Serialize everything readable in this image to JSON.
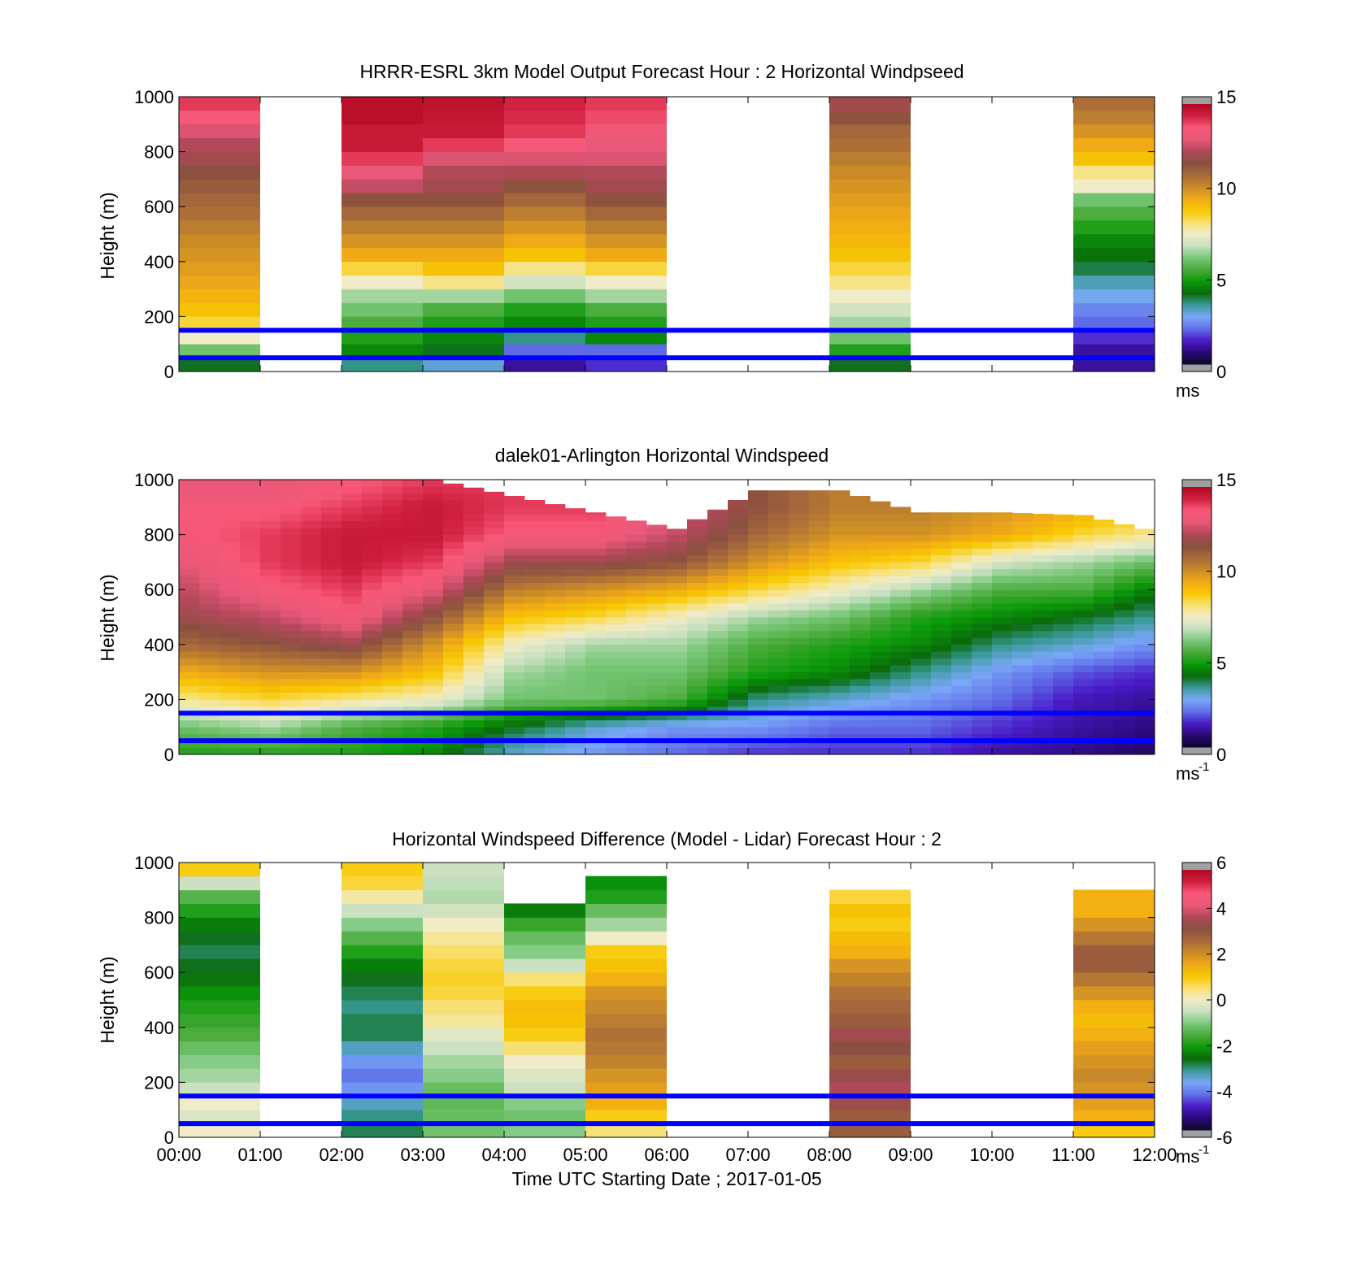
{
  "colors": {
    "speed_stops": [
      "#0a0a2a",
      "#2a0878",
      "#4a1cc8",
      "#6070e8",
      "#7aa8f8",
      "#3a9a9a",
      "#0a6a0a",
      "#0a9a0a",
      "#4aaa3a",
      "#7ac87a",
      "#c8e0c0",
      "#f0ecc8",
      "#f8e070",
      "#f8c800",
      "#f0a818",
      "#c88a28",
      "#a86a3a",
      "#8a5040",
      "#b04858",
      "#e85878",
      "#f85878",
      "#d02040",
      "#b00820"
    ],
    "diff_stops": [
      "#0a0a2a",
      "#2a0878",
      "#4a1cc8",
      "#6070e8",
      "#7aa8f8",
      "#3a9a9a",
      "#0a6a0a",
      "#0a9a0a",
      "#4aaa3a",
      "#7ac87a",
      "#c8e0c0",
      "#f0ecc8",
      "#f8e070",
      "#f8c800",
      "#f0a818",
      "#c88a28",
      "#a86a3a",
      "#8a5040",
      "#b04858",
      "#e85878",
      "#f85878",
      "#d02040",
      "#b00820"
    ],
    "out_of_range": "#a0a0a0",
    "reference_lines": "#0000ff"
  },
  "figure_xlabel": "Time UTC  Starting Date ; 2017-01-05",
  "chart_data": [
    {
      "type": "heatmap",
      "title": "HRRR-ESRL 3km Model Output   Forecast Hour : 2 Horizontal Windpseed",
      "ylabel": "Height (m)",
      "xlim": [
        0,
        12
      ],
      "ylim": [
        0,
        1000
      ],
      "y_ticks": [
        "0",
        "200",
        "400",
        "600",
        "800",
        "1000"
      ],
      "clim": [
        0,
        15
      ],
      "colorbar_ticks": [
        "0",
        "5",
        "10",
        "15"
      ],
      "colorbar_unit": "ms",
      "colorbar_unit_sup": "",
      "reference_heights_m": [
        50,
        150
      ],
      "heights_m": [
        25,
        75,
        125,
        175,
        225,
        275,
        325,
        375,
        425,
        475,
        525,
        575,
        625,
        675,
        725,
        775,
        825,
        875,
        925,
        975
      ],
      "columns": [
        {
          "x_start": 0,
          "x_end": 1,
          "values": [
            4,
            6,
            7.5,
            8.5,
            9,
            9.3,
            9.6,
            9.8,
            10,
            10.2,
            10.5,
            10.8,
            11,
            11.3,
            11.6,
            12,
            12.3,
            12.8,
            13.5,
            14
          ]
        },
        {
          "x_start": 2,
          "x_end": 3,
          "values": [
            3.5,
            4.5,
            5,
            5.5,
            6,
            6.5,
            7.5,
            8.5,
            9.5,
            10,
            10.5,
            11,
            11.5,
            12.5,
            13,
            14,
            14.5,
            14.5,
            14.8,
            14.8
          ]
        },
        {
          "x_start": 3,
          "x_end": 4,
          "values": [
            3,
            4,
            4.5,
            5,
            5.5,
            6.5,
            8,
            9,
            9.5,
            10,
            10.5,
            11,
            11.5,
            12,
            12.3,
            12.8,
            14,
            14.5,
            14.6,
            14.7
          ]
        },
        {
          "x_start": 4,
          "x_end": 5,
          "values": [
            1,
            2,
            3.5,
            4.5,
            5,
            6,
            7,
            8,
            9,
            9.5,
            10,
            10.5,
            11,
            11.5,
            12.2,
            12.8,
            13.5,
            14,
            14.2,
            14.3
          ]
        },
        {
          "x_start": 5,
          "x_end": 6,
          "values": [
            1.5,
            2,
            4.5,
            5,
            5.5,
            6.5,
            7.5,
            8.5,
            9.5,
            10,
            10.5,
            11,
            11.5,
            12,
            12.3,
            12.8,
            13,
            13.3,
            13.8,
            14
          ]
        },
        {
          "x_start": 8,
          "x_end": 9,
          "values": [
            4,
            5,
            6,
            6.5,
            7,
            7.5,
            8,
            8.5,
            9,
            9.2,
            9.4,
            9.6,
            9.8,
            10,
            10.2,
            10.5,
            10.8,
            11,
            11.5,
            12
          ]
        },
        {
          "x_start": 11,
          "x_end": 12,
          "values": [
            1,
            1,
            1.5,
            2,
            2.3,
            2.8,
            3.2,
            3.8,
            4.2,
            4.5,
            5,
            5.5,
            6,
            7.5,
            8,
            9,
            9.5,
            10,
            10.5,
            10.8
          ]
        }
      ]
    },
    {
      "type": "heatmap",
      "title": "dalek01-Arlington  Horizontal Windspeed",
      "ylabel": "Height (m)",
      "xlim": [
        0,
        12
      ],
      "ylim": [
        0,
        1000
      ],
      "y_ticks": [
        "0",
        "200",
        "400",
        "600",
        "800",
        "1000"
      ],
      "clim": [
        0,
        15
      ],
      "colorbar_ticks": [
        "0",
        "5",
        "10",
        "15"
      ],
      "colorbar_unit": "ms",
      "colorbar_unit_sup": "-1",
      "reference_heights_m": [
        50,
        150
      ],
      "profile_interval_h": 0.25,
      "profiles": [
        {
          "t": 0.0,
          "max_height_m": 1000,
          "levels_m": [
            0,
            100,
            200,
            300,
            400,
            500,
            600,
            700,
            800,
            900,
            1000
          ],
          "speeds": [
            5,
            6,
            8,
            9.5,
            11,
            12,
            12.5,
            13,
            13.5,
            13.5,
            13
          ]
        },
        {
          "t": 1.0,
          "max_height_m": 1000,
          "levels_m": [
            0,
            100,
            200,
            300,
            400,
            500,
            600,
            700,
            800,
            900,
            1000
          ],
          "speeds": [
            5,
            6.5,
            8.5,
            10,
            11.5,
            12.5,
            13.5,
            14,
            14,
            13.5,
            13
          ]
        },
        {
          "t": 2.0,
          "max_height_m": 1000,
          "levels_m": [
            0,
            100,
            200,
            300,
            400,
            500,
            600,
            700,
            800,
            900,
            1000
          ],
          "speeds": [
            5,
            5.5,
            8,
            10,
            12,
            13.5,
            14,
            14.5,
            14.5,
            14,
            13.5
          ]
        },
        {
          "t": 3.0,
          "max_height_m": 1000,
          "levels_m": [
            0,
            100,
            200,
            300,
            400,
            500,
            600,
            700,
            800,
            900,
            1000
          ],
          "speeds": [
            4.5,
            5,
            7.5,
            9,
            10,
            11.5,
            13,
            14,
            14.5,
            14.5,
            14
          ]
        },
        {
          "t": 4.0,
          "max_height_m": 940,
          "levels_m": [
            0,
            100,
            200,
            300,
            400,
            500,
            600,
            700,
            800,
            900,
            1000
          ],
          "speeds": [
            3,
            4,
            6,
            6.5,
            7.5,
            9,
            10.5,
            12,
            13.5,
            14,
            14
          ]
        },
        {
          "t": 5.0,
          "max_height_m": 880,
          "levels_m": [
            0,
            100,
            200,
            300,
            400,
            500,
            600,
            700,
            800,
            900,
            1000
          ],
          "speeds": [
            2.5,
            3,
            6,
            6,
            6.5,
            8.5,
            10,
            12,
            13.5,
            14,
            14
          ]
        },
        {
          "t": 6.0,
          "max_height_m": 820,
          "levels_m": [
            0,
            100,
            200,
            300,
            400,
            500,
            600,
            700,
            800,
            900,
            1000
          ],
          "speeds": [
            2,
            2.5,
            5.5,
            6,
            6.5,
            7.5,
            9.5,
            11.5,
            12.5,
            13,
            13
          ]
        },
        {
          "t": 7.0,
          "max_height_m": 960,
          "levels_m": [
            0,
            100,
            200,
            300,
            400,
            500,
            600,
            700,
            800,
            900,
            1000
          ],
          "speeds": [
            1.5,
            2.5,
            3.5,
            5,
            5.5,
            6.5,
            8.5,
            10,
            11,
            11.5,
            11.5
          ]
        },
        {
          "t": 8.0,
          "max_height_m": 960,
          "levels_m": [
            0,
            100,
            200,
            300,
            400,
            500,
            600,
            700,
            800,
            900,
            1000
          ],
          "speeds": [
            1.5,
            2,
            3,
            4.5,
            5,
            6,
            7.5,
            9,
            10,
            10.5,
            10.5
          ]
        },
        {
          "t": 9.0,
          "max_height_m": 880,
          "levels_m": [
            0,
            100,
            200,
            300,
            400,
            500,
            600,
            700,
            800,
            900,
            1000
          ],
          "speeds": [
            1.5,
            2,
            2.5,
            3.5,
            4.5,
            5,
            6.5,
            8.5,
            10,
            10.5,
            10.5
          ]
        },
        {
          "t": 10.0,
          "max_height_m": 880,
          "levels_m": [
            0,
            100,
            200,
            300,
            400,
            500,
            600,
            700,
            800,
            900,
            1000
          ],
          "speeds": [
            1,
            1.5,
            2,
            2.5,
            3.5,
            4.5,
            5.5,
            7,
            9.5,
            10,
            10
          ]
        },
        {
          "t": 11.0,
          "max_height_m": 870,
          "levels_m": [
            0,
            100,
            200,
            300,
            400,
            500,
            600,
            700,
            800,
            900,
            1000
          ],
          "speeds": [
            0.8,
            1,
            1.2,
            1.8,
            3,
            4,
            5.5,
            6.5,
            8.5,
            9.5,
            9.5
          ]
        },
        {
          "t": 11.75,
          "max_height_m": 820,
          "levels_m": [
            0,
            100,
            200,
            300,
            400,
            500,
            600,
            700,
            800,
            900,
            1000
          ],
          "speeds": [
            0.5,
            0.8,
            1,
            1.5,
            2.5,
            3.5,
            4.5,
            6,
            8,
            9,
            9
          ]
        }
      ]
    },
    {
      "type": "heatmap",
      "title": "Horizontal Windspeed Difference (Model - Lidar) Forecast Hour : 2",
      "ylabel": "Height (m)",
      "xlim": [
        0,
        12
      ],
      "ylim": [
        0,
        1000
      ],
      "x_ticks": [
        "00:00",
        "01:00",
        "02:00",
        "03:00",
        "04:00",
        "05:00",
        "06:00",
        "07:00",
        "08:00",
        "09:00",
        "10:00",
        "11:00",
        "12:00"
      ],
      "y_ticks": [
        "0",
        "200",
        "400",
        "600",
        "800",
        "1000"
      ],
      "clim": [
        -6,
        6
      ],
      "colorbar_ticks": [
        "-6",
        "-4",
        "-2",
        "0",
        "2",
        "4",
        "6"
      ],
      "colorbar_unit": "ms",
      "colorbar_unit_sup": "-1",
      "reference_heights_m": [
        50,
        150
      ],
      "heights_m": [
        25,
        75,
        125,
        175,
        225,
        275,
        325,
        375,
        425,
        475,
        525,
        575,
        625,
        675,
        725,
        775,
        825,
        875,
        925,
        975
      ],
      "columns": [
        {
          "x_start": 0,
          "x_end": 1,
          "max_height_m": 1000,
          "values": [
            0,
            -0.3,
            0,
            -0.5,
            -0.8,
            -1,
            -1.3,
            -1.6,
            -1.8,
            -2,
            -2.3,
            -2.6,
            -2.8,
            -3,
            -2.8,
            -2.5,
            -2,
            -1.5,
            -0.5,
            1
          ]
        },
        {
          "x_start": 2,
          "x_end": 3,
          "max_height_m": 1000,
          "values": [
            -3,
            -3.2,
            -3.5,
            -4,
            -4.3,
            -4,
            -3.5,
            -3,
            -3,
            -3.2,
            -3,
            -2.8,
            -2.5,
            -2,
            -1.5,
            -1,
            -0.5,
            0.2,
            0.8,
            1
          ]
        },
        {
          "x_start": 3,
          "x_end": 4,
          "max_height_m": 1000,
          "values": [
            -1.2,
            -1.3,
            -1.4,
            -1.3,
            -1,
            -0.8,
            -0.5,
            -0.2,
            0.3,
            0.5,
            0.8,
            0.9,
            0.8,
            0.6,
            0.3,
            0,
            -0.4,
            -0.7,
            -0.6,
            -0.5
          ]
        },
        {
          "x_start": 4,
          "x_end": 5,
          "max_height_m": 820,
          "values": [
            -1,
            -1.2,
            -1,
            -0.5,
            -0.3,
            0,
            0.5,
            1,
            1.2,
            1.3,
            1,
            0.5,
            -0.5,
            -1,
            -1.3,
            -1.8,
            -2.5
          ]
        },
        {
          "x_start": 5,
          "x_end": 6,
          "max_height_m": 930,
          "values": [
            0.5,
            1,
            1.5,
            1.8,
            2,
            2.3,
            2.5,
            2.6,
            2.4,
            2.2,
            2,
            1.5,
            1.2,
            1,
            0,
            -0.8,
            -1.3,
            -2,
            -2.3
          ]
        },
        {
          "x_start": 8,
          "x_end": 9,
          "max_height_m": 900,
          "values": [
            3,
            3,
            3.5,
            3.8,
            3.5,
            3,
            3.3,
            3.6,
            3,
            2.8,
            2.6,
            2.3,
            2,
            1.5,
            1.3,
            1,
            1.2,
            0.8
          ]
        },
        {
          "x_start": 11,
          "x_end": 12,
          "max_height_m": 865,
          "values": [
            1,
            1.5,
            1.8,
            2,
            2.2,
            2,
            1.8,
            1.5,
            1.3,
            1.5,
            2,
            2.5,
            3,
            3,
            2.5,
            2,
            1.5,
            1.5
          ]
        }
      ]
    }
  ]
}
